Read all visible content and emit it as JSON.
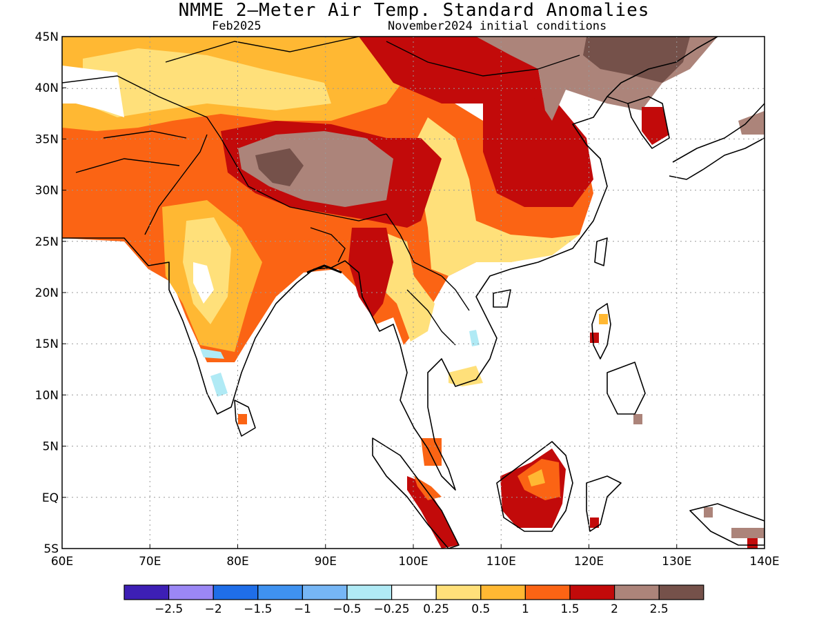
{
  "title": "NMME 2—Meter Air Temp. Standard Anomalies",
  "valid_month": "Feb2025",
  "initial_conditions": "November2024 initial conditions",
  "map": {
    "lon_range": [
      60,
      140
    ],
    "lat_range": [
      -5,
      45
    ],
    "grid": true,
    "x_ticks": [
      "60E",
      "70E",
      "80E",
      "90E",
      "100E",
      "110E",
      "120E",
      "130E",
      "140E"
    ],
    "y_ticks": [
      "5S",
      "EQ",
      "5N",
      "10N",
      "15N",
      "20N",
      "25N",
      "30N",
      "35N",
      "40N",
      "45N"
    ]
  },
  "colorbar": {
    "colors": [
      "#3d1fb5",
      "#9b87f5",
      "#1f6ee8",
      "#3f92f0",
      "#76b6f5",
      "#b0eaf5",
      "#ffffff",
      "#ffe07a",
      "#ffb833",
      "#fb6414",
      "#c20a0a",
      "#ac847a",
      "#75514a"
    ],
    "labels": [
      "−2.5",
      "−2",
      "−1.5",
      "−1",
      "−0.5",
      "−0.25",
      "0.25",
      "0.5",
      "1",
      "1.5",
      "2",
      "2.5"
    ]
  }
}
